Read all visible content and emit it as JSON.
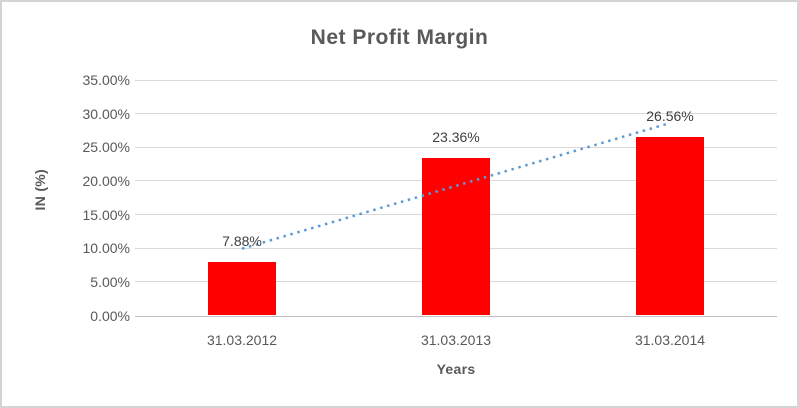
{
  "chart_data": {
    "type": "bar",
    "title": "Net Profit Margin",
    "xlabel": "Years",
    "ylabel": "IN (%)",
    "categories": [
      "31.03.2012",
      "31.03.2013",
      "31.03.2014"
    ],
    "values": [
      7.88,
      23.36,
      26.56
    ],
    "data_labels": [
      "7.88%",
      "23.36%",
      "26.56%"
    ],
    "ylim": [
      0,
      35
    ],
    "ytick_step": 5,
    "ytick_labels": [
      "0.00%",
      "5.00%",
      "10.00%",
      "15.00%",
      "20.00%",
      "25.00%",
      "30.00%",
      "35.00%"
    ],
    "grid": true,
    "legend": false,
    "trendline": {
      "type": "linear",
      "style": "dotted",
      "start_value": 9.93,
      "end_value": 28.61
    }
  },
  "colors": {
    "bar": "#ff0000",
    "trendline": "#5b9bd5",
    "gridline": "#d9d9d9",
    "axis_line": "#bfbfbf",
    "text": "#595959",
    "data_label": "#3f3f3f"
  }
}
